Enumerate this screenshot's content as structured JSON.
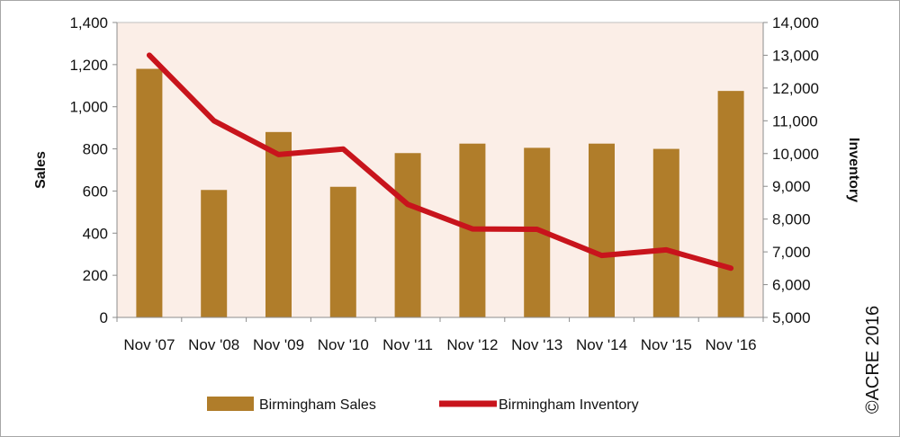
{
  "chart_data": {
    "type": "bar",
    "categories": [
      "Nov '07",
      "Nov '08",
      "Nov '09",
      "Nov '10",
      "Nov '11",
      "Nov '12",
      "Nov '13",
      "Nov '14",
      "Nov '15",
      "Nov '16"
    ],
    "series": [
      {
        "name": "Birmingham Sales",
        "type": "bar",
        "axis": "left",
        "color": "#b07d2a",
        "values": [
          1180,
          605,
          880,
          620,
          780,
          825,
          805,
          825,
          800,
          1075
        ]
      },
      {
        "name": "Birmingham Inventory",
        "type": "line",
        "axis": "right",
        "color": "#c8141c",
        "values": [
          13000,
          11000,
          9970,
          10140,
          8450,
          7700,
          7690,
          6890,
          7060,
          6500
        ]
      }
    ],
    "ylabel": "Sales",
    "y2label": "Inventory",
    "ylim": [
      0,
      1400
    ],
    "y2lim": [
      5000,
      14000
    ],
    "yticks": [
      "0",
      "200",
      "400",
      "600",
      "800",
      "1,000",
      "1,200",
      "1,400"
    ],
    "y2ticks": [
      "5,000",
      "6,000",
      "7,000",
      "8,000",
      "9,000",
      "10,000",
      "11,000",
      "12,000",
      "13,000",
      "14,000"
    ],
    "legend_position": "bottom",
    "plot_background": "#fbeee7",
    "grid": false
  },
  "copyright": "©ACRE 2016"
}
